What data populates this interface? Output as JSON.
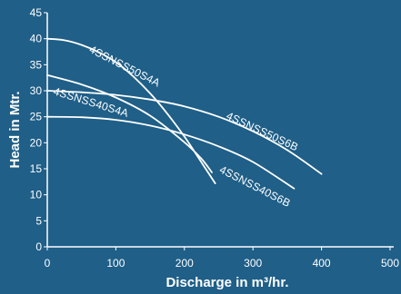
{
  "chart_data": {
    "type": "line",
    "xlabel": "Discharge in m³/hr.",
    "ylabel": "Head in Mtr.",
    "xlim": [
      0,
      500
    ],
    "ylim": [
      0,
      45
    ],
    "x_ticks": [
      "0",
      "100",
      "200",
      "300",
      "400",
      "500"
    ],
    "y_ticks": [
      "0",
      "5",
      "10",
      "15",
      "20",
      "25",
      "30",
      "35",
      "40",
      "45"
    ],
    "grid": false,
    "legend": "none",
    "background_color": "#1f5f88",
    "line_color": "#ffffff",
    "series": [
      {
        "name": "4SSNSS50S4A",
        "x": [
          0,
          25,
          50,
          75,
          100,
          125,
          150,
          175,
          200,
          225,
          245
        ],
        "y": [
          40,
          39.7,
          38.8,
          37.4,
          35.5,
          32.8,
          29.5,
          25.6,
          21.2,
          16.2,
          12.2
        ]
      },
      {
        "name": "4SSNSS40S4A",
        "x": [
          0,
          50,
          100,
          150,
          200,
          225,
          240
        ],
        "y": [
          33,
          31.2,
          28.7,
          25.2,
          20.1,
          16.9,
          14.3
        ]
      },
      {
        "name": "4SSNSS50S6B",
        "x": [
          0,
          50,
          100,
          150,
          200,
          250,
          300,
          350,
          400
        ],
        "y": [
          30,
          29.7,
          29.2,
          28.3,
          27.0,
          25.0,
          22.2,
          18.6,
          14.0
        ]
      },
      {
        "name": "4SSNSS40S6B",
        "x": [
          0,
          50,
          100,
          150,
          200,
          250,
          300,
          360
        ],
        "y": [
          25,
          24.9,
          24.4,
          23.3,
          21.6,
          19.3,
          16.3,
          11.2
        ]
      }
    ]
  }
}
